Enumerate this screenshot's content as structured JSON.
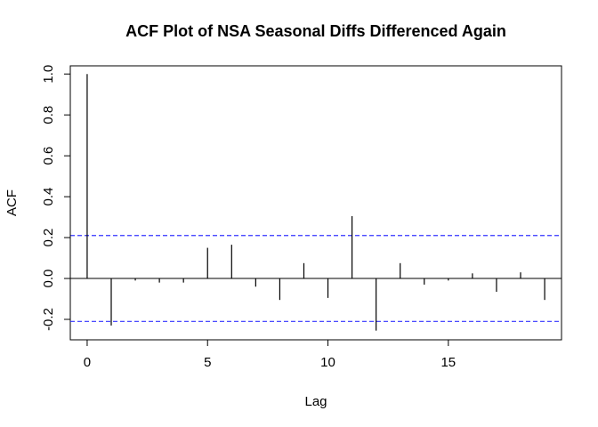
{
  "chart_data": {
    "type": "bar",
    "title": "ACF Plot of NSA Seasonal Diffs Differenced Again",
    "xlabel": "Lag",
    "ylabel": "ACF",
    "xlim": [
      -0.7,
      19.7
    ],
    "ylim": [
      -0.3,
      1.04
    ],
    "x_ticks": [
      0,
      5,
      10,
      15
    ],
    "y_ticks": [
      -0.2,
      0.0,
      0.2,
      0.4,
      0.6,
      0.8,
      1.0
    ],
    "x_tick_labels": [
      "0",
      "5",
      "10",
      "15"
    ],
    "y_tick_labels": [
      "-0.2",
      "0.0",
      "0.2",
      "0.4",
      "0.6",
      "0.8",
      "1.0"
    ],
    "grid": false,
    "lags": [
      0,
      1,
      2,
      3,
      4,
      5,
      6,
      7,
      8,
      9,
      10,
      11,
      12,
      13,
      14,
      15,
      16,
      17,
      18,
      19
    ],
    "values": [
      1.0,
      -0.23,
      -0.01,
      -0.02,
      -0.02,
      0.15,
      0.165,
      -0.04,
      -0.105,
      0.075,
      -0.095,
      0.305,
      -0.255,
      0.075,
      -0.03,
      -0.01,
      0.025,
      -0.065,
      0.03,
      -0.105
    ],
    "confidence_bound": 0.21,
    "colors": {
      "bars": "#000000",
      "zero_line": "#000000",
      "confidence_lines": "#3333ff",
      "frame": "#000000"
    }
  }
}
